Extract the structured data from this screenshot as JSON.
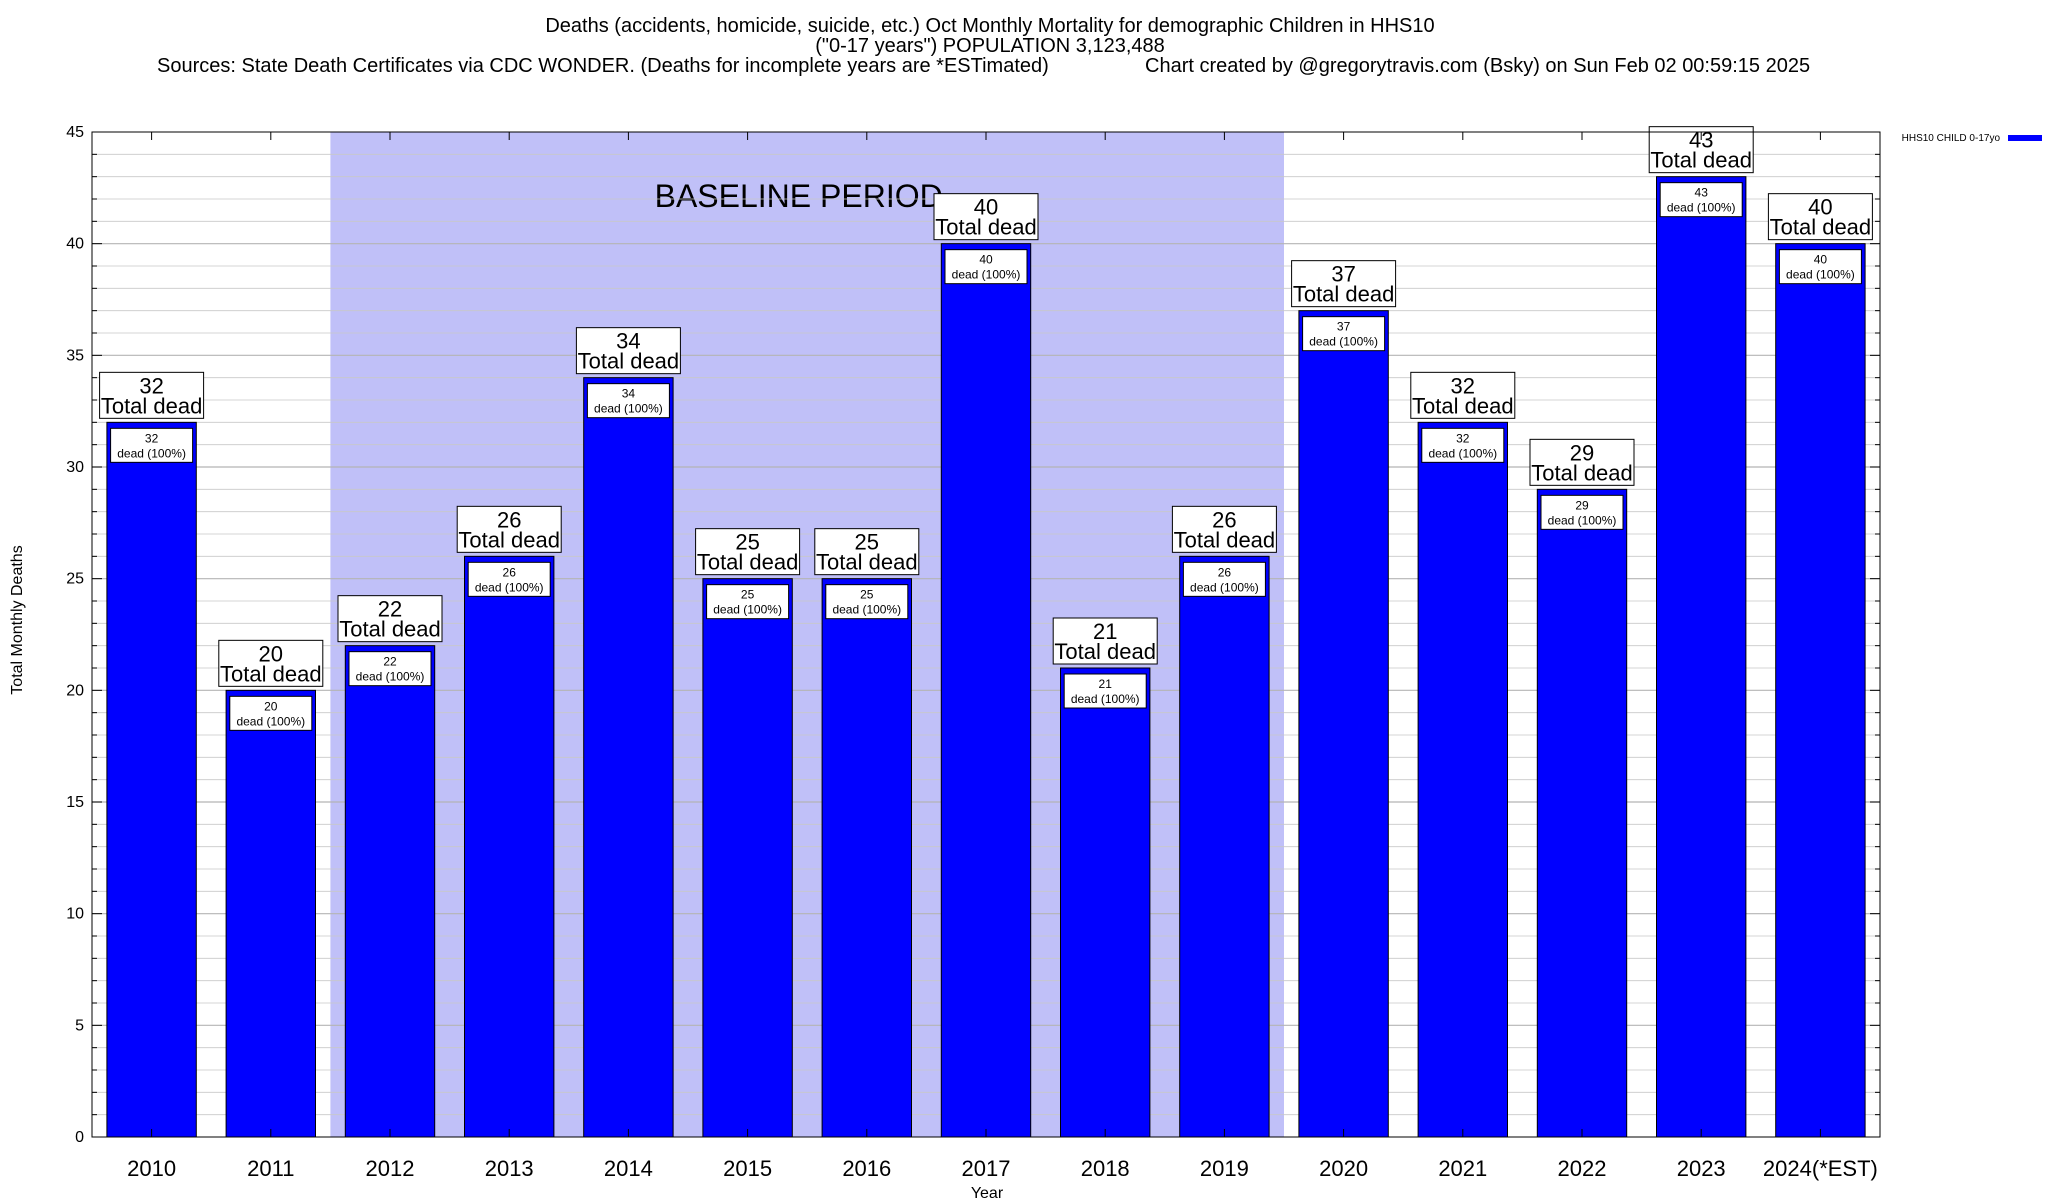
{
  "colors": {
    "bar": "#0000ff",
    "baseline_shade": "#c0c0f8",
    "grid": "#c8c8c8",
    "label_box": "#ffffff"
  },
  "title_lines": [
    "Deaths (accidents, homicide, suicide, etc.) Oct Monthly Mortality for demographic Children in HHS10",
    "(\"0-17 years\") POPULATION 3,123,488"
  ],
  "sources_left": "Sources: State Death Certificates via CDC WONDER. (Deaths for incomplete years are *ESTimated)",
  "sources_right": "Chart created by @gregorytravis.com (Bsky) on Sun Feb 02 00:59:15 2025",
  "chart_data": {
    "type": "bar",
    "title": "Deaths (accidents, homicide, suicide, etc.) Oct Monthly Mortality for demographic Children in HHS10 (\"0-17 years\") POPULATION 3,123,488",
    "xlabel": "Year",
    "ylabel": "Total Monthly Deaths",
    "ylim": [
      0,
      45
    ],
    "y_major_step": 5,
    "y_minor_step": 1,
    "categories": [
      "2010",
      "2011",
      "2012",
      "2013",
      "2014",
      "2015",
      "2016",
      "2017",
      "2018",
      "2019",
      "2020",
      "2021",
      "2022",
      "2023",
      "2024(*EST)"
    ],
    "series": [
      {
        "name": "HHS10 CHILD 0-17yo",
        "values": [
          32,
          20,
          22,
          26,
          34,
          25,
          25,
          40,
          21,
          26,
          37,
          32,
          29,
          43,
          40
        ]
      }
    ],
    "total_label": "Total dead",
    "inner_label": "dead (100%)",
    "baseline_period": {
      "label": "BASELINE PERIOD",
      "start_category": "2012",
      "end_category": "2019"
    },
    "legend_position": "top-right",
    "grid": true
  }
}
